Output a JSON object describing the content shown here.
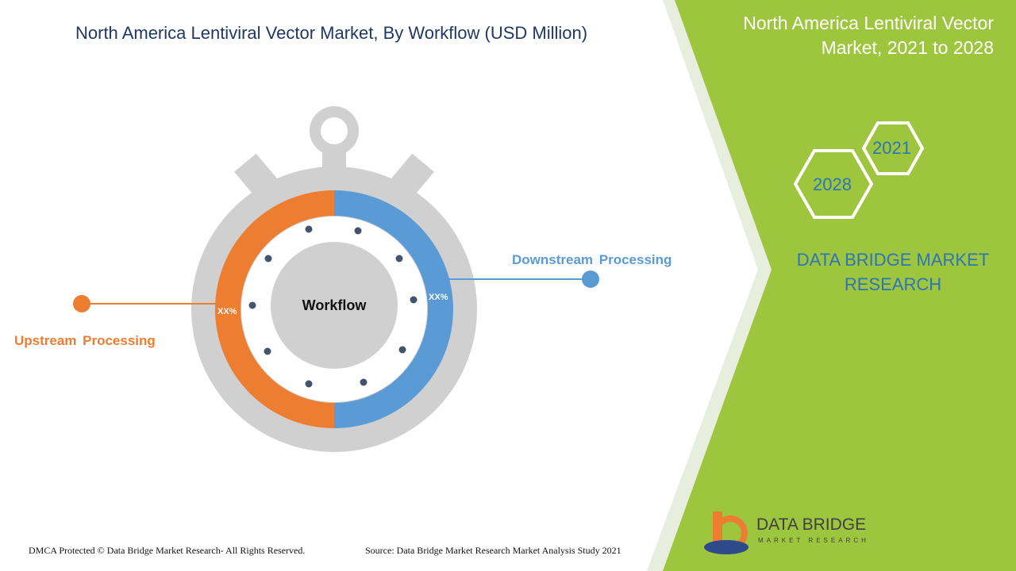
{
  "header": {
    "title": "North America Lentiviral Vector Market, By Workflow (USD Million)",
    "side_title": "North America Lentiviral Vector Market, 2021 to 2028"
  },
  "years": [
    "2021",
    "2028"
  ],
  "brand": "DATA BRIDGE MARKET RESEARCH",
  "diagram": {
    "center": "Workflow",
    "segments": [
      {
        "label": "Upstream Processing",
        "share": "XX%"
      },
      {
        "label": "Downstream Processing",
        "share": "XX%"
      }
    ]
  },
  "logo": {
    "name": "DATA BRIDGE",
    "tagline": "MARKET RESEARCH"
  },
  "footer": {
    "left": "DMCA Protected © Data Bridge Market Research- All Rights Reserved.",
    "right": "Source: Data Bridge Market Research Market Analysis Study 2021"
  }
}
